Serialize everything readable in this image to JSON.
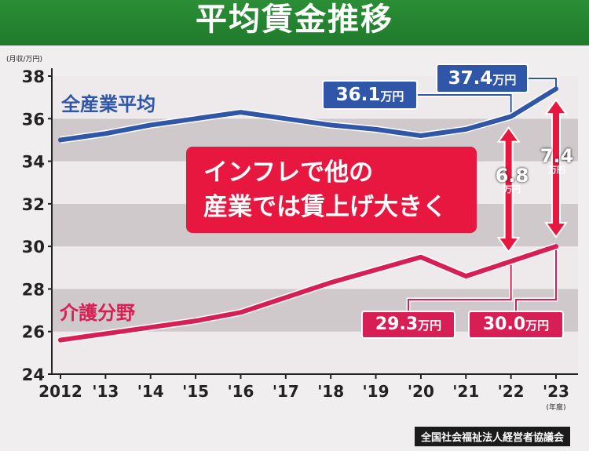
{
  "title": "平均賃金推移",
  "source": "全国社会福祉法人経営者協議会",
  "y_unit_label": "(月収/万円)",
  "x_unit_label": "(年度)",
  "message": [
    "インフレで他の",
    "産業では賃上げ大きく"
  ],
  "colors": {
    "blue": "#2f56a8",
    "pink": "#d81f55",
    "accent": "#e8173f",
    "green": "#2e8b3a"
  },
  "chart_data": {
    "type": "line",
    "title": "平均賃金推移",
    "ylabel": "(月収/万円)",
    "xlabel": "(年度)",
    "ylim": [
      24,
      38
    ],
    "yticks": [
      "24",
      "26",
      "28",
      "30",
      "32",
      "34",
      "36",
      "38"
    ],
    "categories": [
      "2012",
      "'13",
      "'14",
      "'15",
      "'16",
      "'17",
      "'18",
      "'19",
      "'20",
      "'21",
      "'22",
      "'23"
    ],
    "series": [
      {
        "name": "全産業平均",
        "color": "#2f56a8",
        "values": [
          35.0,
          35.3,
          35.7,
          36.0,
          36.3,
          36.0,
          35.7,
          35.5,
          35.2,
          35.5,
          36.1,
          37.4
        ]
      },
      {
        "name": "介護分野",
        "color": "#d81f55",
        "values": [
          25.6,
          25.9,
          26.2,
          26.5,
          26.9,
          27.6,
          28.3,
          28.9,
          29.5,
          28.6,
          29.3,
          30.0
        ]
      }
    ],
    "annotations": [
      {
        "series": "全産業平均",
        "x": "'22",
        "value": "36.1",
        "unit": "万円"
      },
      {
        "series": "全産業平均",
        "x": "'23",
        "value": "37.4",
        "unit": "万円"
      },
      {
        "series": "介護分野",
        "x": "'22",
        "value": "29.3",
        "unit": "万円"
      },
      {
        "series": "介護分野",
        "x": "'23",
        "value": "30.0",
        "unit": "万円"
      }
    ],
    "differences": [
      {
        "x": "'22",
        "value": "6.8",
        "unit": "万円"
      },
      {
        "x": "'23",
        "value": "7.4",
        "unit": "万円"
      }
    ],
    "grid": "horizontal bands",
    "legend": "inline labels"
  }
}
